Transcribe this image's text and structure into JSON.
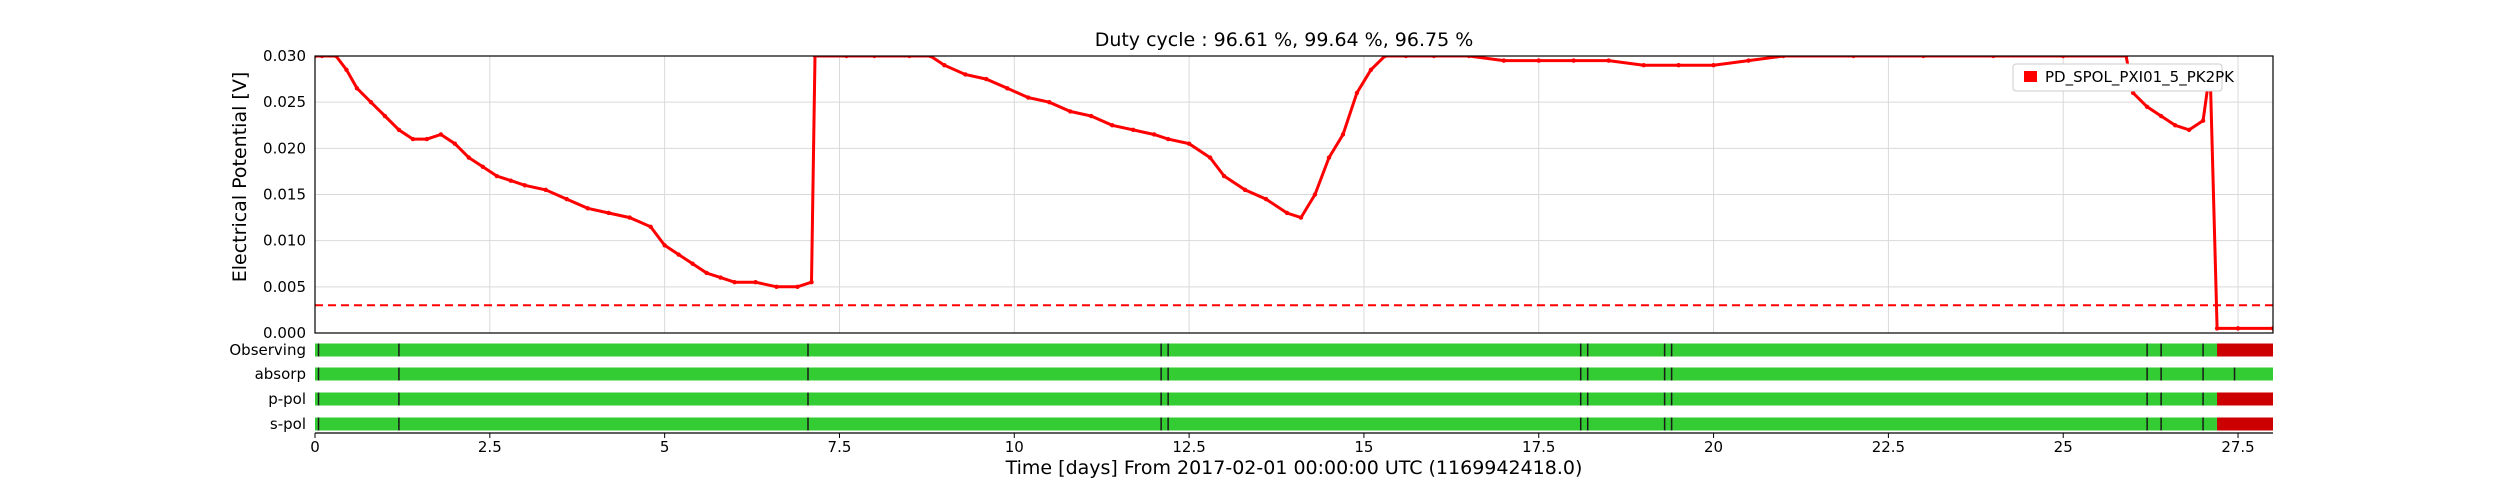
{
  "chart_data": {
    "type": "line",
    "title": "Duty cycle : 96.61 %, 99.64 %, 96.75 %",
    "xlabel": "Time [days] From 2017-02-01 00:00:00 UTC (1169942418.0)",
    "ylabel": "Electrical Potential [V]",
    "xlim": [
      0,
      28
    ],
    "ylim": [
      0,
      0.03
    ],
    "x_ticks": [
      "0",
      "2.5",
      "5",
      "7.5",
      "10",
      "12.5",
      "15",
      "17.5",
      "20",
      "22.5",
      "25",
      "27.5"
    ],
    "y_ticks": [
      "0.000",
      "0.005",
      "0.010",
      "0.015",
      "0.020",
      "0.025",
      "0.030"
    ],
    "grid": true,
    "legend_position": "top-right",
    "threshold": {
      "value": 0.003,
      "style": "dashed",
      "color": "#ff0000"
    },
    "series": [
      {
        "name": "PD_SPOL_PXI01_5_PK2PK",
        "color": "#ff0000",
        "x": [
          0,
          0.1,
          0.3,
          0.45,
          0.6,
          0.8,
          1.0,
          1.2,
          1.4,
          1.6,
          1.8,
          2.0,
          2.2,
          2.4,
          2.6,
          2.8,
          3.0,
          3.3,
          3.6,
          3.9,
          4.2,
          4.5,
          4.8,
          5.0,
          5.2,
          5.4,
          5.6,
          5.8,
          6.0,
          6.3,
          6.6,
          6.9,
          7.1,
          7.15,
          7.6,
          8.0,
          8.5,
          8.8,
          9.0,
          9.3,
          9.6,
          9.9,
          10.2,
          10.5,
          10.8,
          11.1,
          11.4,
          11.7,
          12.0,
          12.2,
          12.5,
          12.8,
          13.0,
          13.3,
          13.6,
          13.9,
          14.1,
          14.3,
          14.5,
          14.7,
          14.9,
          15.1,
          15.3,
          15.6,
          16.0,
          16.5,
          17.0,
          17.5,
          18.0,
          18.5,
          19.0,
          19.5,
          20.0,
          20.5,
          21.0,
          22.0,
          23.0,
          24.0,
          25.0,
          25.9,
          26.0,
          26.2,
          26.4,
          26.6,
          26.8,
          27.0,
          27.1,
          27.2,
          27.5,
          28.0
        ],
        "y": [
          0.03,
          0.03,
          0.03,
          0.0285,
          0.0265,
          0.025,
          0.0235,
          0.022,
          0.021,
          0.021,
          0.0215,
          0.0205,
          0.019,
          0.018,
          0.017,
          0.0165,
          0.016,
          0.0155,
          0.0145,
          0.0135,
          0.013,
          0.0125,
          0.0115,
          0.0095,
          0.0085,
          0.0075,
          0.0065,
          0.006,
          0.0055,
          0.0055,
          0.005,
          0.005,
          0.0055,
          0.03,
          0.03,
          0.03,
          0.03,
          0.03,
          0.029,
          0.028,
          0.0275,
          0.0265,
          0.0255,
          0.025,
          0.024,
          0.0235,
          0.0225,
          0.022,
          0.0215,
          0.021,
          0.0205,
          0.019,
          0.017,
          0.0155,
          0.0145,
          0.013,
          0.0125,
          0.015,
          0.019,
          0.0215,
          0.026,
          0.0285,
          0.03,
          0.03,
          0.03,
          0.03,
          0.0295,
          0.0295,
          0.0295,
          0.0295,
          0.029,
          0.029,
          0.029,
          0.0295,
          0.03,
          0.03,
          0.03,
          0.03,
          0.03,
          0.03,
          0.026,
          0.0245,
          0.0235,
          0.0225,
          0.022,
          0.023,
          0.0285,
          0.0005,
          0.0005,
          0.0005
        ]
      }
    ],
    "state_rows": [
      {
        "label": "Observing",
        "on_color": "#33cc33",
        "off_color": "#cc0000",
        "off_intervals": [
          [
            27.2,
            28.0
          ]
        ],
        "breaks": [
          0.05,
          1.2,
          7.05,
          12.1,
          12.2,
          18.1,
          18.2,
          19.3,
          19.4,
          26.2,
          26.4,
          27.0
        ]
      },
      {
        "label": "absorp",
        "on_color": "#33cc33",
        "off_color": "#cc0000",
        "off_intervals": [],
        "breaks": [
          0.05,
          1.2,
          7.05,
          12.1,
          12.2,
          18.1,
          18.2,
          19.3,
          19.4,
          26.2,
          26.4,
          27.0,
          27.45
        ]
      },
      {
        "label": "p-pol",
        "on_color": "#33cc33",
        "off_color": "#cc0000",
        "off_intervals": [
          [
            27.2,
            28.0
          ]
        ],
        "breaks": [
          0.05,
          1.2,
          7.05,
          12.1,
          12.2,
          18.1,
          18.2,
          19.3,
          19.4,
          26.2,
          26.4,
          27.0
        ]
      },
      {
        "label": "s-pol",
        "on_color": "#33cc33",
        "off_color": "#cc0000",
        "off_intervals": [
          [
            27.2,
            28.0
          ]
        ],
        "breaks": [
          0.05,
          1.2,
          7.05,
          12.1,
          12.2,
          18.1,
          18.2,
          19.3,
          19.4,
          26.2,
          26.4,
          27.0
        ]
      }
    ]
  }
}
